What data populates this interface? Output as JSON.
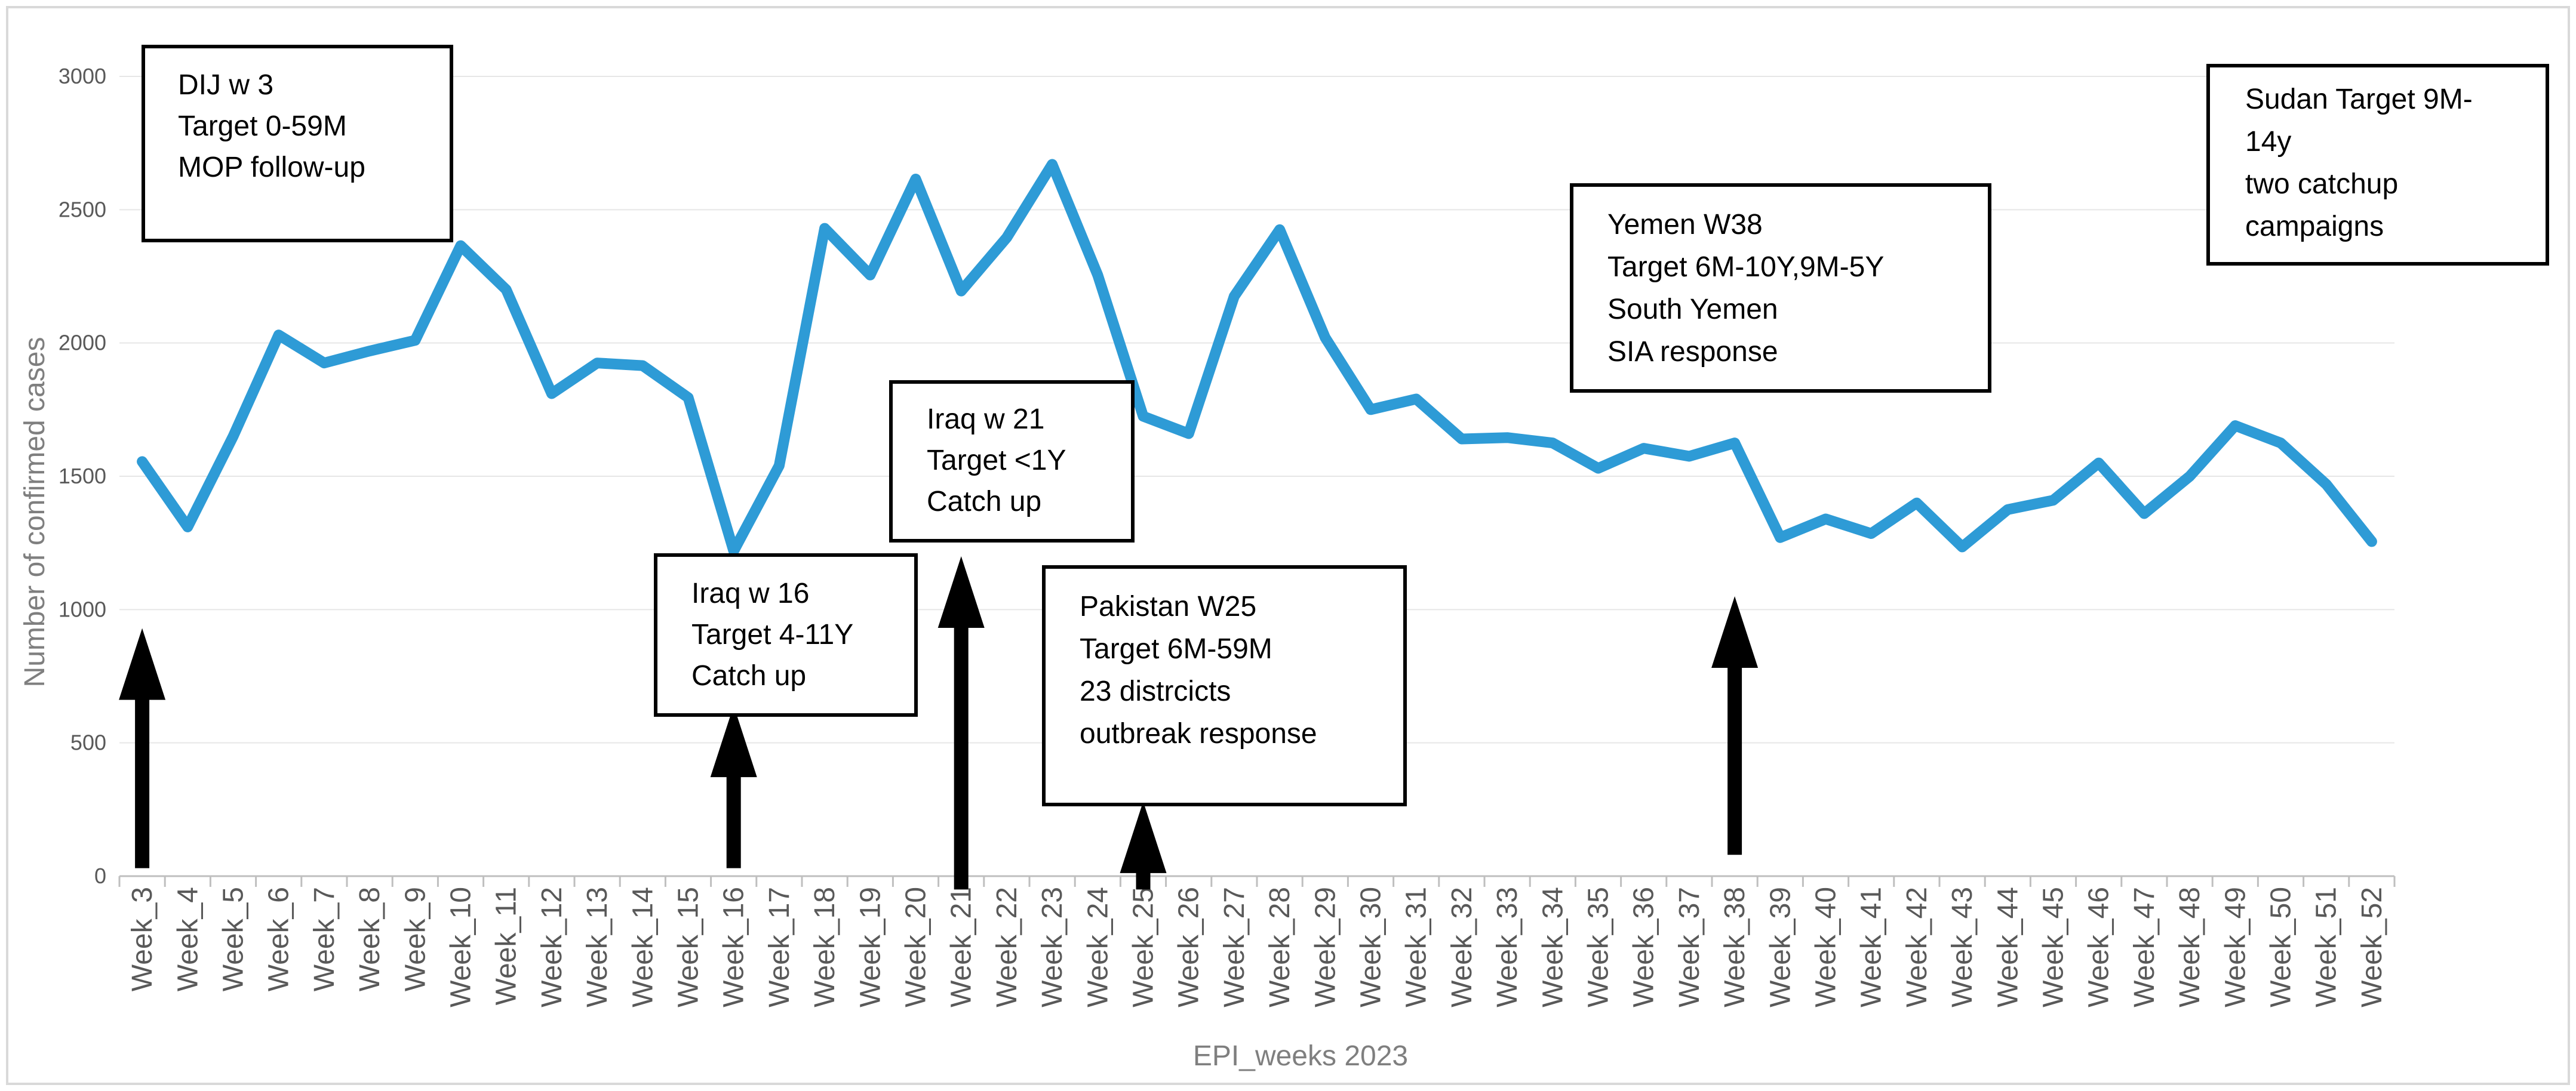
{
  "chart_data": {
    "type": "line",
    "xlabel": "EPI_weeks 2023",
    "ylabel": "Number of  confirmed cases",
    "ylim": [
      0,
      3000
    ],
    "yticks": [
      0,
      500,
      1000,
      1500,
      2000,
      2500,
      3000
    ],
    "grid": true,
    "categories": [
      "Week_3",
      "Week_4",
      "Week_5",
      "Week_6",
      "Week_7",
      "Week_8",
      "Week_9",
      "Week_10",
      "Week_11",
      "Week_12",
      "Week_13",
      "Week_14",
      "Week_15",
      "Week_16",
      "Week_17",
      "Week_18",
      "Week_19",
      "Week_20",
      "Week_21",
      "Week_22",
      "Week_23",
      "Week_24",
      "Week_25",
      "Week_26",
      "Week_27",
      "Week_28",
      "Week_29",
      "Week_30",
      "Week_31",
      "Week_32",
      "Week_33",
      "Week_34",
      "Week_35",
      "Week_36",
      "Week_37",
      "Week_38",
      "Week_39",
      "Week_40",
      "Week_41",
      "Week_42",
      "Week_43",
      "Week_44",
      "Week_45",
      "Week_46",
      "Week_47",
      "Week_48",
      "Week_49",
      "Week_50",
      "Week_51",
      "Week_52"
    ],
    "series": [
      {
        "color": "#2e9bd6",
        "values": [
          1555,
          1310,
          1650,
          2030,
          1925,
          1970,
          2010,
          2365,
          2200,
          1810,
          1925,
          1915,
          1795,
          1220,
          1540,
          2430,
          2255,
          2615,
          2195,
          2395,
          2670,
          2255,
          1725,
          1660,
          2175,
          2425,
          2020,
          1750,
          1790,
          1640,
          1645,
          1625,
          1530,
          1605,
          1575,
          1625,
          1270,
          1340,
          1285,
          1400,
          1235,
          1375,
          1410,
          1550,
          1360,
          1500,
          1690,
          1625,
          1470,
          1255
        ]
      }
    ],
    "annotations": [
      {
        "lines": [
          "DIJ w 3",
          "Target 0-59M",
          "MOP follow-up"
        ],
        "week": "Week_3",
        "arrow_from": 30,
        "arrow_to": 930
      },
      {
        "lines": [
          "Iraq w 16",
          "Target 4-11Y",
          "Catch up"
        ],
        "week": "Week_16",
        "arrow_from": 30,
        "arrow_to": 640
      },
      {
        "lines": [
          "Iraq w 21",
          "Target <1Y",
          "Catch up"
        ],
        "week": "Week_21",
        "arrow_from": -50,
        "arrow_to": 1200
      },
      {
        "lines": [
          "Pakistan W25",
          "Target 6M-59M",
          "23 distrcicts",
          "outbreak response"
        ],
        "week": "Week_25",
        "arrow_from": -50,
        "arrow_to": 280
      },
      {
        "lines": [
          "Yemen W38",
          "Target 6M-10Y,9M-5Y",
          "South Yemen",
          "SIA response"
        ],
        "week": "Week_38",
        "arrow_from": 80,
        "arrow_to": 1050
      },
      {
        "lines": [
          "Sudan Target 9M-",
          "14y",
          "two catchup",
          "campaigns"
        ],
        "week": null
      }
    ]
  }
}
